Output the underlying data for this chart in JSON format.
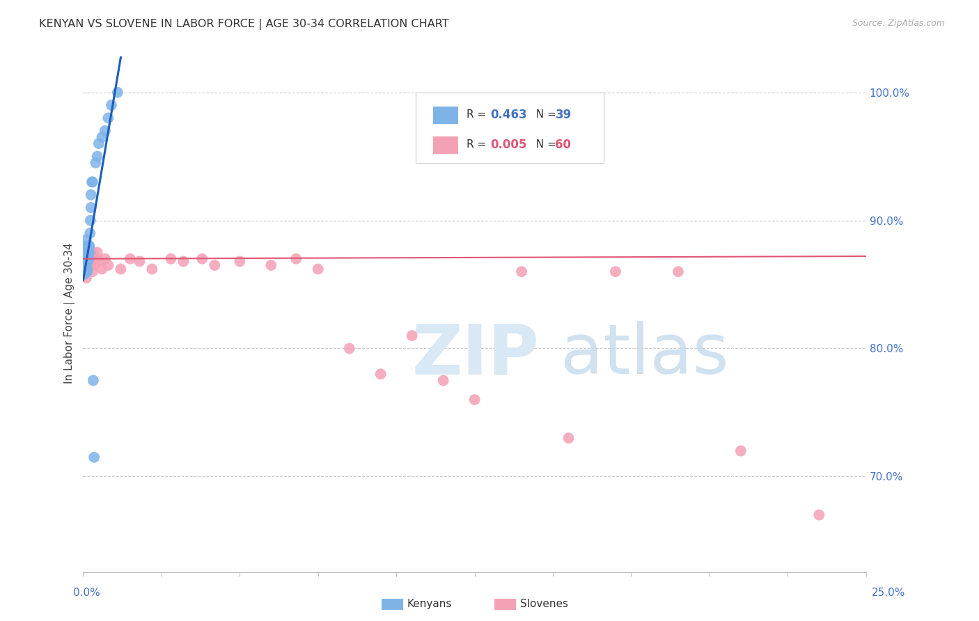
{
  "title": "KENYAN VS SLOVENE IN LABOR FORCE | AGE 30-34 CORRELATION CHART",
  "source_text": "Source: ZipAtlas.com",
  "ylabel": "In Labor Force | Age 30-34",
  "right_yticklabels": [
    "70.0%",
    "80.0%",
    "90.0%",
    "100.0%"
  ],
  "right_yticks_val": [
    0.7,
    0.8,
    0.9,
    1.0
  ],
  "xmin": 0.0,
  "xmax": 0.25,
  "ymin": 0.625,
  "ymax": 1.03,
  "kenyan_color": "#7EB3E8",
  "slovene_color": "#F4A0B5",
  "blue_line_color": "#1A5EBB",
  "pink_line_color": "#E05575",
  "kenyan_x": [
    0.0003,
    0.0005,
    0.0005,
    0.0007,
    0.0008,
    0.0008,
    0.0009,
    0.001,
    0.001,
    0.001,
    0.0012,
    0.0012,
    0.0013,
    0.0013,
    0.0014,
    0.0015,
    0.0015,
    0.0016,
    0.0016,
    0.0017,
    0.0018,
    0.002,
    0.002,
    0.0022,
    0.0023,
    0.0025,
    0.0025,
    0.0028,
    0.003,
    0.0032,
    0.0035,
    0.004,
    0.0045,
    0.005,
    0.006,
    0.007,
    0.008,
    0.009,
    0.011
  ],
  "kenyan_y": [
    0.858,
    0.868,
    0.875,
    0.878,
    0.862,
    0.87,
    0.88,
    0.87,
    0.878,
    0.885,
    0.86,
    0.87,
    0.862,
    0.875,
    0.87,
    0.868,
    0.878,
    0.87,
    0.875,
    0.88,
    0.87,
    0.875,
    0.88,
    0.89,
    0.9,
    0.91,
    0.92,
    0.93,
    0.93,
    0.775,
    0.715,
    0.945,
    0.95,
    0.96,
    0.965,
    0.97,
    0.98,
    0.99,
    1.0
  ],
  "slovene_x": [
    0.0003,
    0.0004,
    0.0005,
    0.0005,
    0.0006,
    0.0007,
    0.0007,
    0.0008,
    0.0008,
    0.0009,
    0.001,
    0.001,
    0.001,
    0.0011,
    0.0012,
    0.0012,
    0.0013,
    0.0014,
    0.0015,
    0.0015,
    0.0016,
    0.0017,
    0.0018,
    0.002,
    0.002,
    0.0022,
    0.0025,
    0.003,
    0.003,
    0.0032,
    0.0035,
    0.004,
    0.0045,
    0.005,
    0.006,
    0.007,
    0.008,
    0.012,
    0.015,
    0.018,
    0.022,
    0.028,
    0.032,
    0.038,
    0.042,
    0.05,
    0.06,
    0.068,
    0.075,
    0.085,
    0.095,
    0.105,
    0.115,
    0.125,
    0.14,
    0.155,
    0.17,
    0.19,
    0.21,
    0.235
  ],
  "slovene_y": [
    0.868,
    0.875,
    0.86,
    0.872,
    0.878,
    0.862,
    0.875,
    0.865,
    0.872,
    0.875,
    0.855,
    0.865,
    0.872,
    0.868,
    0.86,
    0.872,
    0.875,
    0.862,
    0.868,
    0.875,
    0.87,
    0.875,
    0.872,
    0.865,
    0.872,
    0.87,
    0.865,
    0.86,
    0.875,
    0.87,
    0.865,
    0.87,
    0.875,
    0.868,
    0.862,
    0.87,
    0.865,
    0.862,
    0.87,
    0.868,
    0.862,
    0.87,
    0.868,
    0.87,
    0.865,
    0.868,
    0.865,
    0.87,
    0.862,
    0.8,
    0.78,
    0.81,
    0.775,
    0.76,
    0.86,
    0.73,
    0.86,
    0.86,
    0.72,
    0.67
  ]
}
